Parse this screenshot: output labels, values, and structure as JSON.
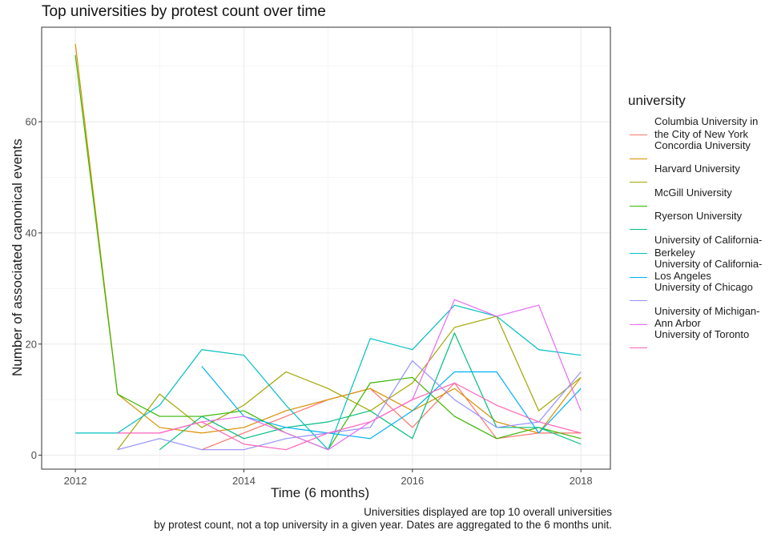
{
  "chart_data": {
    "type": "line",
    "title": "Top universities by protest count over time",
    "xlabel": "Time (6 months)",
    "ylabel": "Number of associated canonical events",
    "caption_lines": [
      "Universities displayed are top 10 overall universities",
      "by protest count, not a top university in a given year. Dates are aggregated to the 6 months unit."
    ],
    "legend_title": "university",
    "legend_position": "right",
    "grid": true,
    "xlim": [
      2011.6,
      2018.35
    ],
    "ylim": [
      -2.5,
      77
    ],
    "x_ticks": [
      2012,
      2014,
      2016,
      2018
    ],
    "x_tick_labels": [
      "2012",
      "2014",
      "2016",
      "2018"
    ],
    "y_ticks": [
      0,
      20,
      40,
      60
    ],
    "y_tick_labels": [
      "0",
      "20",
      "40",
      "60"
    ],
    "x": [
      2012,
      2012.5,
      2013,
      2013.5,
      2014,
      2014.5,
      2015,
      2015.5,
      2016,
      2016.5,
      2017,
      2017.5,
      2018
    ],
    "series": [
      {
        "name": "Columbia University in the City of New York",
        "color": "#F8766D",
        "values": [
          null,
          null,
          null,
          1,
          4,
          7,
          10,
          12,
          5,
          13,
          3,
          4,
          4
        ]
      },
      {
        "name": "Concordia University",
        "color": "#D89000",
        "values": [
          74,
          11,
          5,
          4,
          5,
          8,
          10,
          12,
          8,
          12,
          6,
          4,
          14
        ]
      },
      {
        "name": "Harvard University",
        "color": "#A3A500",
        "values": [
          null,
          1,
          11,
          5,
          9,
          15,
          12,
          8,
          13,
          23,
          25,
          8,
          14
        ]
      },
      {
        "name": "McGill University",
        "color": "#39B600",
        "values": [
          72,
          11,
          7,
          7,
          8,
          4,
          1,
          13,
          14,
          7,
          3,
          5,
          3
        ]
      },
      {
        "name": "Ryerson University",
        "color": "#00BF7D",
        "values": [
          null,
          null,
          1,
          7,
          3,
          5,
          6,
          8,
          3,
          22,
          5,
          5,
          2
        ]
      },
      {
        "name": "University of California-Berkeley",
        "color": "#00BFC4",
        "values": [
          4,
          4,
          9,
          19,
          18,
          9,
          1,
          21,
          19,
          27,
          25,
          19,
          18
        ]
      },
      {
        "name": "University of California-Los Angeles",
        "color": "#00B0F6",
        "values": [
          null,
          null,
          null,
          16,
          7,
          5,
          4,
          3,
          8,
          15,
          15,
          4,
          12
        ]
      },
      {
        "name": "University of Chicago",
        "color": "#9590FF",
        "values": [
          null,
          1,
          3,
          1,
          1,
          3,
          4,
          5,
          17,
          10,
          5,
          6,
          15
        ]
      },
      {
        "name": "University of Michigan-Ann Arbor",
        "color": "#E76BF3",
        "values": [
          null,
          null,
          4,
          6,
          7,
          4,
          1,
          6,
          10,
          28,
          25,
          27,
          8
        ]
      },
      {
        "name": "University of Toronto",
        "color": "#FF62BC",
        "values": [
          null,
          4,
          4,
          6,
          2,
          1,
          4,
          6,
          10,
          13,
          9,
          6,
          4
        ]
      }
    ],
    "legend_labels": [
      "Columbia University in the City of New York",
      "Concordia University",
      "Harvard University",
      "McGill University",
      "Ryerson University",
      "University of California-Berkeley",
      "University of California-Los Angeles",
      "University of Chicago",
      "University of Michigan-Ann Arbor",
      "University of Toronto"
    ]
  }
}
